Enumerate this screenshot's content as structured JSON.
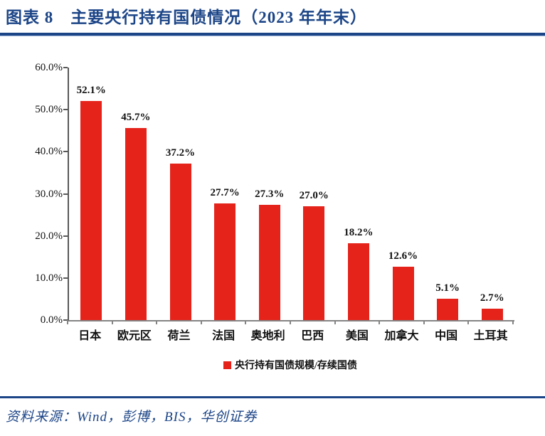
{
  "figure": {
    "title": "图表 8　主要央行持有国债情况（2023 年年末）",
    "source": "资料来源：Wind，彭博，BIS，华创证券"
  },
  "colors": {
    "navy": "#1C4587",
    "bar_red": "#E5231B",
    "y_axis_gray": "#595959",
    "x_axis_gray": "#848484",
    "label_black": "#111111"
  },
  "chart_data": {
    "type": "bar",
    "title": "主要央行持有国债情况（2023 年年末）",
    "categories": [
      "日本",
      "欧元区",
      "荷兰",
      "法国",
      "奥地利",
      "巴西",
      "美国",
      "加拿大",
      "中国",
      "土耳其"
    ],
    "values": [
      52.1,
      45.7,
      37.2,
      27.7,
      27.3,
      27.0,
      18.2,
      12.6,
      5.1,
      2.7
    ],
    "data_labels": [
      "52.1%",
      "45.7%",
      "37.2%",
      "27.7%",
      "27.3%",
      "27.0%",
      "18.2%",
      "12.6%",
      "5.1%",
      "2.7%"
    ],
    "xlabel": "",
    "ylabel": "",
    "ylim": [
      0,
      60
    ],
    "y_ticks": [
      "60.0%",
      "50.0%",
      "40.0%",
      "30.0%",
      "20.0%",
      "10.0%",
      "0.0%"
    ],
    "y_tick_values": [
      60,
      50,
      40,
      30,
      20,
      10,
      0
    ],
    "grid": false,
    "legend": {
      "position": "bottom",
      "items": [
        {
          "label": "央行持有国债规模/存续国债",
          "color": "#E5231B",
          "marker": "square-icon"
        }
      ]
    }
  }
}
